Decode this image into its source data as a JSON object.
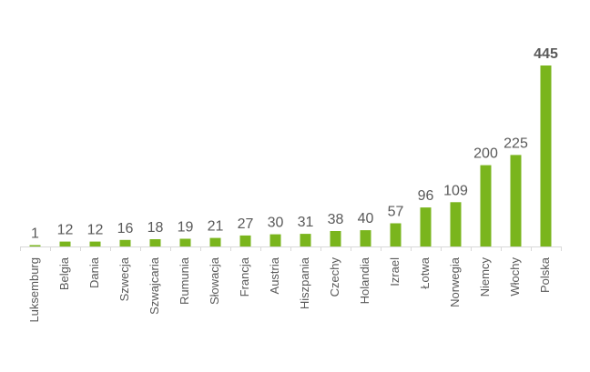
{
  "chart_data": {
    "type": "bar",
    "title": "",
    "xlabel": "",
    "ylabel": "",
    "categories": [
      "Luksemburg",
      "Belgia",
      "Dania",
      "Szwecja",
      "Szwajcaria",
      "Rumunia",
      "Słowacja",
      "Francja",
      "Austria",
      "Hiszpania",
      "Czechy",
      "Holandia",
      "Izrael",
      "Łotwa",
      "Norwegia",
      "Niemcy",
      "Włochy",
      "Polska"
    ],
    "values": [
      1,
      12,
      12,
      16,
      18,
      19,
      21,
      27,
      30,
      31,
      38,
      40,
      57,
      96,
      109,
      200,
      225,
      445
    ],
    "value_labels": [
      "1",
      "12",
      "12",
      "16",
      "18",
      "19",
      "21",
      "27",
      "30",
      "31",
      "38",
      "40",
      "57",
      "96",
      "109",
      "200",
      "225",
      "445"
    ],
    "highlight_index": 17,
    "ylim": [
      0,
      445
    ],
    "grid": false,
    "legend": "none",
    "colors": {
      "bar": "#7ab51d",
      "text": "#595959",
      "axis": "#d9d9d9"
    }
  }
}
